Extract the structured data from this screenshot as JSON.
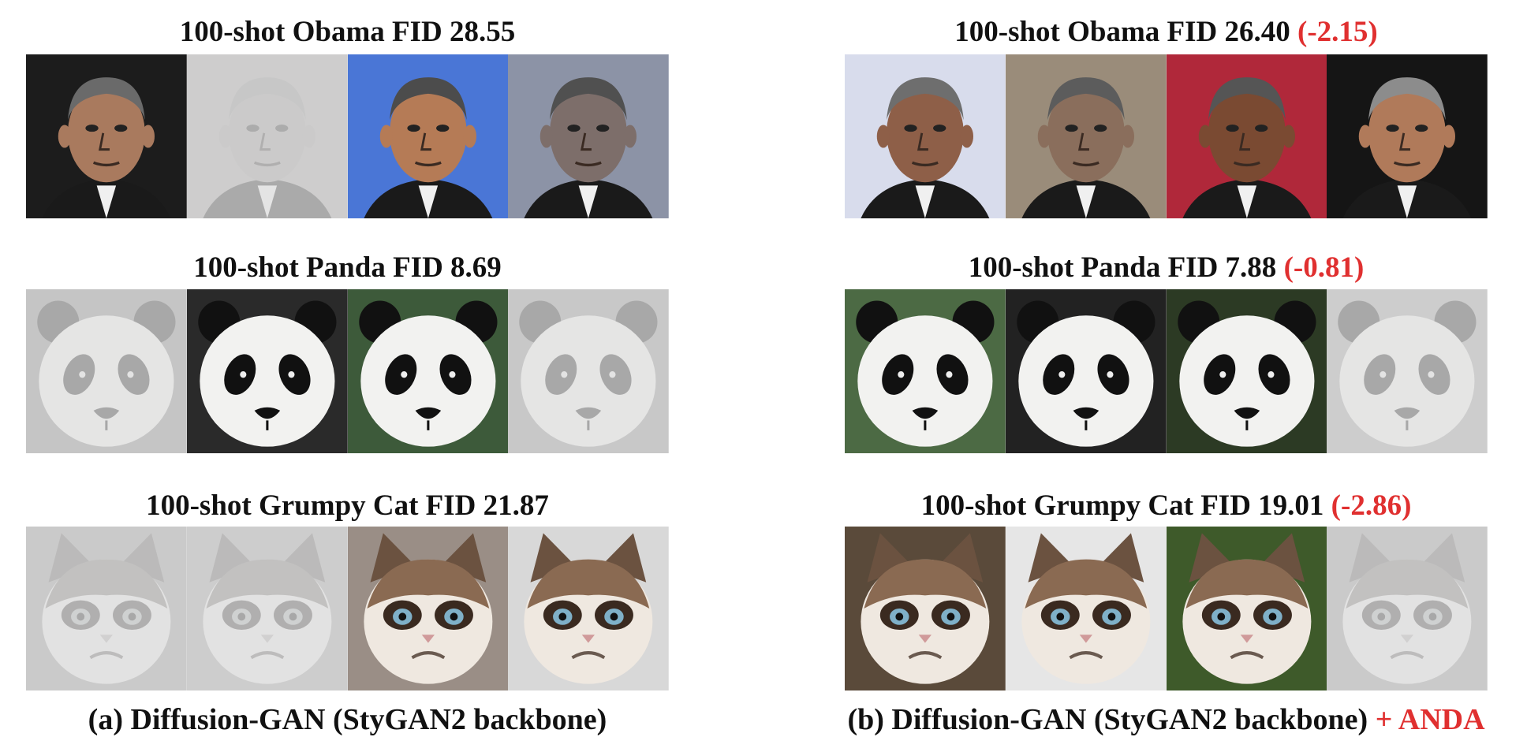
{
  "panels": [
    {
      "caption": "(a) Diffusion-GAN (StyGAN2 backbone)",
      "caption_suffix": "",
      "rows": [
        {
          "title": "100-shot Obama FID 28.55",
          "delta": "",
          "tiles": [
            {
              "subject": "face",
              "bg": "#1c1c1c",
              "skin": "#a97a5e",
              "hair": "#6a6a6a",
              "faded": false
            },
            {
              "subject": "face",
              "bg": "#a59a94",
              "skin": "#9b8f88",
              "hair": "#8a8580",
              "faded": true
            },
            {
              "subject": "face",
              "bg": "#4a76d6",
              "skin": "#b57b56",
              "hair": "#4c4c4c",
              "faded": false
            },
            {
              "subject": "face",
              "bg": "#8c93a6",
              "skin": "#7d6e6a",
              "hair": "#505050",
              "faded": false
            }
          ]
        },
        {
          "title": "100-shot Panda FID 8.69",
          "delta": "",
          "tiles": [
            {
              "subject": "panda",
              "bg": "#7c7c78",
              "faded": true
            },
            {
              "subject": "panda",
              "bg": "#2a2a2a",
              "faded": false
            },
            {
              "subject": "panda",
              "bg": "#3d5a3a",
              "faded": false
            },
            {
              "subject": "panda",
              "bg": "#8a8a86",
              "faded": true
            }
          ]
        },
        {
          "title": "100-shot Grumpy Cat FID 21.87",
          "delta": "",
          "tiles": [
            {
              "subject": "cat",
              "bg": "#8d9088",
              "faded": true
            },
            {
              "subject": "cat",
              "bg": "#9c9a94",
              "faded": true
            },
            {
              "subject": "cat",
              "bg": "#9a8e86",
              "faded": false
            },
            {
              "subject": "cat",
              "bg": "#d8d8d8",
              "faded": false
            }
          ]
        }
      ]
    },
    {
      "caption": "(b) Diffusion-GAN (StyGAN2 backbone)",
      "caption_suffix": "+ ANDA",
      "rows": [
        {
          "title": "100-shot Obama FID 26.40",
          "delta": "(-2.15)",
          "tiles": [
            {
              "subject": "face",
              "bg": "#d8dcec",
              "skin": "#8e5f48",
              "hair": "#6e6e6e",
              "faded": false
            },
            {
              "subject": "face",
              "bg": "#9a8c7a",
              "skin": "#8a6e5c",
              "hair": "#5c5c5c",
              "faded": false
            },
            {
              "subject": "face",
              "bg": "#b0283a",
              "skin": "#7a4a32",
              "hair": "#555555",
              "faded": false
            },
            {
              "subject": "face",
              "bg": "#151515",
              "skin": "#b07a5a",
              "hair": "#8c8c8c",
              "faded": false
            }
          ]
        },
        {
          "title": "100-shot Panda FID 7.88",
          "delta": "(-0.81)",
          "tiles": [
            {
              "subject": "panda",
              "bg": "#4c6a44",
              "faded": false
            },
            {
              "subject": "panda",
              "bg": "#222222",
              "faded": false
            },
            {
              "subject": "panda",
              "bg": "#2c3a24",
              "faded": false
            },
            {
              "subject": "panda",
              "bg": "#9a9a96",
              "faded": true
            }
          ]
        },
        {
          "title": "100-shot Grumpy Cat FID 19.01",
          "delta": "(-2.86)",
          "tiles": [
            {
              "subject": "cat",
              "bg": "#5a4a3a",
              "faded": false
            },
            {
              "subject": "cat",
              "bg": "#e6e6e6",
              "faded": false
            },
            {
              "subject": "cat",
              "bg": "#3e5a2a",
              "faded": false
            },
            {
              "subject": "cat",
              "bg": "#8e8e8e",
              "faded": true
            }
          ]
        }
      ]
    }
  ]
}
